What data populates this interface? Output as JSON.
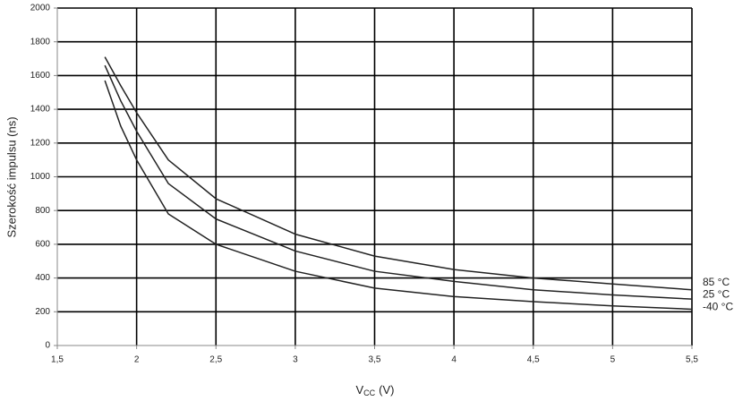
{
  "chart_data": {
    "type": "line",
    "ylabel": "Szerokość impulsu (ns)",
    "xlabel": "V",
    "xlabel_sub": "CC",
    "xlabel_unit": "(V)",
    "x": [
      1.8,
      1.9,
      2,
      2.2,
      2.5,
      3,
      3.5,
      4,
      4.5,
      5,
      5.5
    ],
    "series": [
      {
        "name": "85 °C",
        "color": "#222222",
        "values": [
          1710,
          1540,
          1380,
          1100,
          870,
          660,
          530,
          450,
          400,
          365,
          330
        ]
      },
      {
        "name": "25 °C",
        "color": "#222222",
        "values": [
          1660,
          1450,
          1270,
          960,
          750,
          560,
          440,
          380,
          330,
          300,
          275
        ]
      },
      {
        "name": "-40 °C",
        "color": "#222222",
        "values": [
          1570,
          1300,
          1100,
          780,
          600,
          440,
          340,
          290,
          260,
          235,
          215
        ]
      }
    ],
    "xlim": [
      1.5,
      5.5
    ],
    "xticks": [
      {
        "value": 1.5,
        "label": "1,5"
      },
      2,
      {
        "value": 2.5,
        "label": "2,5"
      },
      3,
      {
        "value": 3.5,
        "label": "3,5"
      },
      4,
      {
        "value": 4.5,
        "label": "4,5"
      },
      5,
      {
        "value": 5.5,
        "label": "5,5"
      }
    ],
    "ylim": [
      0,
      2000
    ],
    "yticks": [
      0,
      200,
      400,
      600,
      800,
      1000,
      1200,
      1400,
      1600,
      1800,
      2000
    ],
    "grid": true
  }
}
